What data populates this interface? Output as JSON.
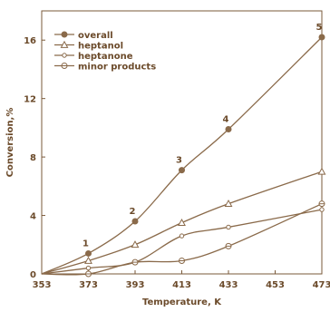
{
  "chart_data": {
    "type": "line",
    "xlabel": "Temperature, K",
    "ylabel": "Conversion,%",
    "xlim": [
      353,
      473
    ],
    "ylim": [
      0,
      18
    ],
    "xticks": [
      353,
      373,
      393,
      413,
      433,
      453,
      473
    ],
    "yticks": [
      0,
      4,
      8,
      12,
      16
    ],
    "legend_position": "top-left",
    "grid": false,
    "colors": {
      "line": "#8a6a4a",
      "text": "#6b4a2a",
      "axis": "#7a5a3a"
    },
    "series": [
      {
        "name": "overall",
        "marker": "filled-circle",
        "x": [
          353,
          373,
          393,
          413,
          433,
          473
        ],
        "y": [
          0,
          1.4,
          3.6,
          7.1,
          9.9,
          16.2
        ],
        "point_labels": [
          "",
          "1",
          "2",
          "3",
          "4",
          "5"
        ]
      },
      {
        "name": "heptanol",
        "marker": "triangle",
        "x": [
          353,
          373,
          393,
          413,
          433,
          473
        ],
        "y": [
          0,
          0.9,
          2.0,
          3.5,
          4.8,
          7.0
        ]
      },
      {
        "name": "heptanone",
        "marker": "small-circle",
        "x": [
          353,
          373,
          393,
          413,
          433,
          473
        ],
        "y": [
          0,
          0.4,
          0.8,
          2.6,
          3.2,
          4.4
        ]
      },
      {
        "name": "minor products",
        "marker": "open-circle",
        "x": [
          353,
          373,
          393,
          413,
          433,
          473
        ],
        "y": [
          0,
          0.0,
          0.8,
          0.9,
          1.9,
          4.8
        ]
      }
    ]
  }
}
